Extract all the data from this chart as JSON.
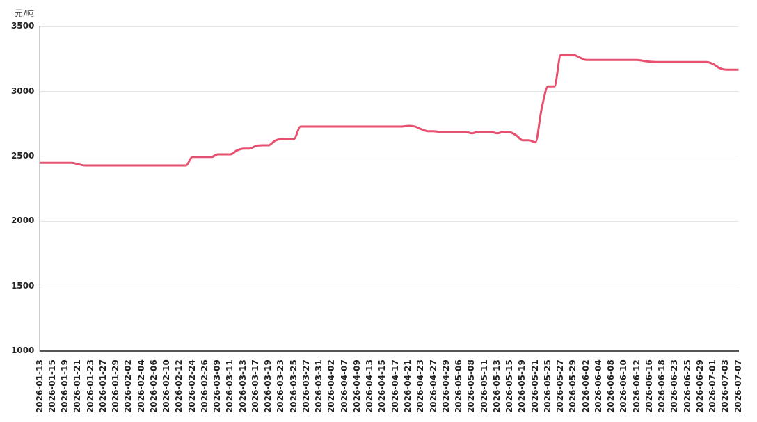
{
  "chart_data": {
    "type": "line",
    "ylabel": "元/吨",
    "categories": [
      "2026-01-13",
      null,
      "2026-01-15",
      null,
      "2026-01-19",
      null,
      "2026-01-21",
      null,
      "2026-01-23",
      null,
      "2026-01-27",
      null,
      "2026-01-29",
      null,
      "2026-02-02",
      null,
      "2026-02-04",
      null,
      "2026-02-06",
      null,
      "2026-02-10",
      null,
      "2026-02-12",
      null,
      "2026-02-24",
      null,
      "2026-02-26",
      null,
      "2026-03-09",
      null,
      "2026-03-11",
      null,
      "2026-03-13",
      null,
      "2026-03-17",
      null,
      "2026-03-19",
      null,
      "2026-03-23",
      null,
      "2026-03-25",
      null,
      "2026-03-27",
      null,
      "2026-03-31",
      null,
      "2026-04-02",
      null,
      "2026-04-07",
      null,
      "2026-04-09",
      null,
      "2026-04-13",
      null,
      "2026-04-15",
      null,
      "2026-04-17",
      null,
      "2026-04-21",
      null,
      "2026-04-23",
      null,
      "2026-04-27",
      null,
      "2026-04-29",
      null,
      "2026-05-06",
      null,
      "2026-05-08",
      null,
      "2026-05-11",
      null,
      "2026-05-13",
      null,
      "2026-05-15",
      null,
      "2026-05-19",
      null,
      "2026-05-21",
      null,
      "2026-05-25",
      null,
      "2026-05-27",
      null,
      "2026-05-29",
      null,
      "2026-06-02",
      null,
      "2026-06-04",
      null,
      "2026-06-08",
      null,
      "2026-06-10",
      null,
      "2026-06-12",
      null,
      "2026-06-16",
      null,
      "2026-06-18",
      null,
      "2026-06-23",
      null,
      "2026-06-25",
      null,
      "2026-06-29",
      null,
      "2026-07-01",
      null,
      "2026-07-03",
      null,
      "2026-07-07"
    ],
    "series": [
      {
        "color": "#e8506f",
        "values": [
          2450,
          2450,
          2450,
          2450,
          2450,
          2450,
          2440,
          2430,
          2430,
          2430,
          2430,
          2430,
          2430,
          2430,
          2430,
          2430,
          2430,
          2430,
          2430,
          2430,
          2430,
          2430,
          2430,
          2430,
          2495,
          2495,
          2495,
          2495,
          2516,
          2516,
          2516,
          2545,
          2560,
          2560,
          2580,
          2585,
          2585,
          2620,
          2632,
          2632,
          2632,
          2730,
          2730,
          2730,
          2730,
          2730,
          2730,
          2730,
          2730,
          2730,
          2730,
          2730,
          2730,
          2730,
          2730,
          2730,
          2730,
          2730,
          2735,
          2730,
          2710,
          2694,
          2694,
          2688,
          2688,
          2688,
          2688,
          2688,
          2677,
          2688,
          2688,
          2688,
          2677,
          2688,
          2685,
          2661,
          2624,
          2624,
          2608,
          2871,
          3038,
          3038,
          3280,
          3280,
          3280,
          3260,
          3242,
          3242,
          3242,
          3242,
          3242,
          3242,
          3242,
          3242,
          3242,
          3235,
          3228,
          3226,
          3226,
          3226,
          3226,
          3226,
          3226,
          3226,
          3226,
          3226,
          3210,
          3180,
          3167,
          3167,
          3167
        ]
      }
    ],
    "ylim": [
      1000,
      3500
    ],
    "yticks": [
      1000,
      1500,
      2000,
      2500,
      3000,
      3500
    ],
    "grid": "y",
    "legend": false,
    "marker": "none",
    "line_style": "solid"
  }
}
